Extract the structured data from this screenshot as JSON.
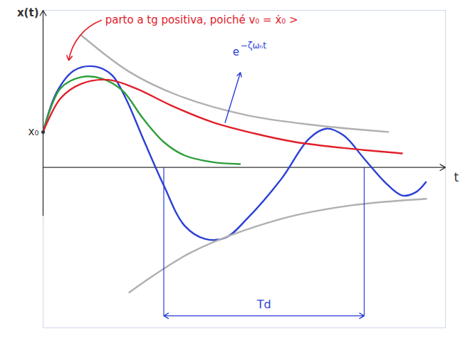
{
  "chart_data": {
    "type": "line",
    "x_label": "x(t)",
    "t_label": "t",
    "xlim": [
      0,
      10.5
    ],
    "ylim": [
      -2.4,
      2.35
    ],
    "tick_labels": false,
    "series": [
      {
        "color": "#2b3fd6",
        "line_style": "solid",
        "x": [
          0,
          0.36,
          0.81,
          1.35,
          1.8,
          2.16,
          2.61,
          3.15,
          3.69,
          4.23,
          4.77,
          5.32,
          6.22,
          6.94,
          7.39,
          7.84,
          8.38,
          8.92,
          9.37,
          9.73,
          9.99
        ],
        "values": [
          0.53,
          1.13,
          1.45,
          1.51,
          1.38,
          1.03,
          0.43,
          -0.27,
          -0.87,
          -1.07,
          -1.05,
          -0.77,
          -0.17,
          0.43,
          0.58,
          0.48,
          0.13,
          -0.22,
          -0.42,
          -0.37,
          -0.22
        ]
      },
      {
        "color": "#2e9e3a",
        "line_style": "solid",
        "x": [
          0,
          0.45,
          0.99,
          1.53,
          2.07,
          2.61,
          3.15,
          3.69,
          4.41,
          5.14
        ],
        "values": [
          0.53,
          1.18,
          1.35,
          1.33,
          1.15,
          0.73,
          0.38,
          0.18,
          0.08,
          0.05
        ]
      },
      {
        "color": "#e0202a",
        "line_style": "solid",
        "x": [
          0,
          0.45,
          0.99,
          1.71,
          2.43,
          3.33,
          4.41,
          5.5,
          6.58,
          8.02,
          9.37
        ],
        "values": [
          0.53,
          1.03,
          1.25,
          1.31,
          1.18,
          0.93,
          0.68,
          0.51,
          0.38,
          0.28,
          0.21
        ]
      },
      {
        "color": "#b0b0b0",
        "line_style": "solid",
        "x": [
          0.99,
          2.25,
          3.51,
          5.32,
          7.12,
          9.01
        ],
        "values": [
          1.98,
          1.43,
          1.08,
          0.78,
          0.63,
          0.53
        ]
      },
      {
        "color": "#b0b0b0",
        "line_style": "solid",
        "x": [
          2.25,
          3.87,
          6.22,
          8.02,
          10.0
        ],
        "values": [
          -1.87,
          -1.27,
          -0.77,
          -0.57,
          -0.47
        ]
      }
    ],
    "x0": {
      "label": "x₀",
      "value": 0.53
    },
    "annotations": [
      {
        "text": "parto a tg positiva, poiché v₀ = ẋ₀ >",
        "x": 1.62,
        "y": 2.2,
        "color": "#e0202a"
      },
      {
        "text": "e",
        "exponent": "−ζωₙt",
        "x": 4.95,
        "y": 1.72,
        "color": "#2b3fd6"
      }
    ],
    "period": {
      "label": "Td",
      "from": 3.15,
      "to": 8.38,
      "y": -2.22,
      "color": "#2b3fd6"
    }
  }
}
